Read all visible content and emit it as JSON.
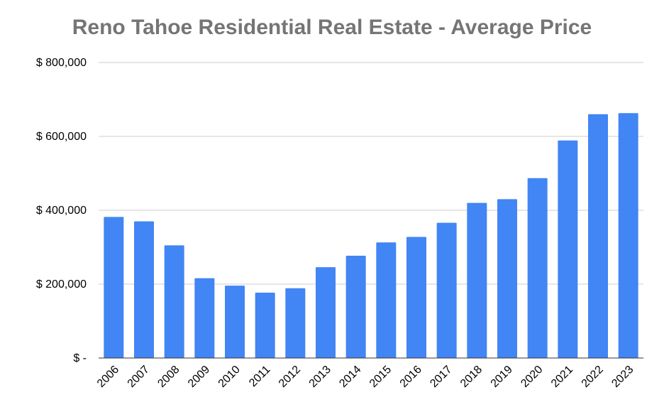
{
  "chart_data": {
    "type": "bar",
    "title": "Reno Tahoe Residential Real Estate - Average Price",
    "xlabel": "",
    "ylabel": "",
    "categories": [
      "2006",
      "2007",
      "2008",
      "2009",
      "2010",
      "2011",
      "2012",
      "2013",
      "2014",
      "2015",
      "2016",
      "2017",
      "2018",
      "2019",
      "2020",
      "2021",
      "2022",
      "2023"
    ],
    "values": [
      382000,
      370000,
      305000,
      216000,
      196000,
      177000,
      189000,
      246000,
      277000,
      313000,
      328000,
      366000,
      420000,
      430000,
      487000,
      589000,
      660000,
      663000
    ],
    "ylim": [
      0,
      800000
    ],
    "y_ticks": [
      {
        "value": 0,
        "label": "$ -"
      },
      {
        "value": 200000,
        "label": "$ 200,000"
      },
      {
        "value": 400000,
        "label": "$ 400,000"
      },
      {
        "value": 600000,
        "label": "$ 600,000"
      },
      {
        "value": 800000,
        "label": "$ 800,000"
      }
    ],
    "grid": true,
    "legend": "none",
    "bar_color": "#4285f4"
  }
}
